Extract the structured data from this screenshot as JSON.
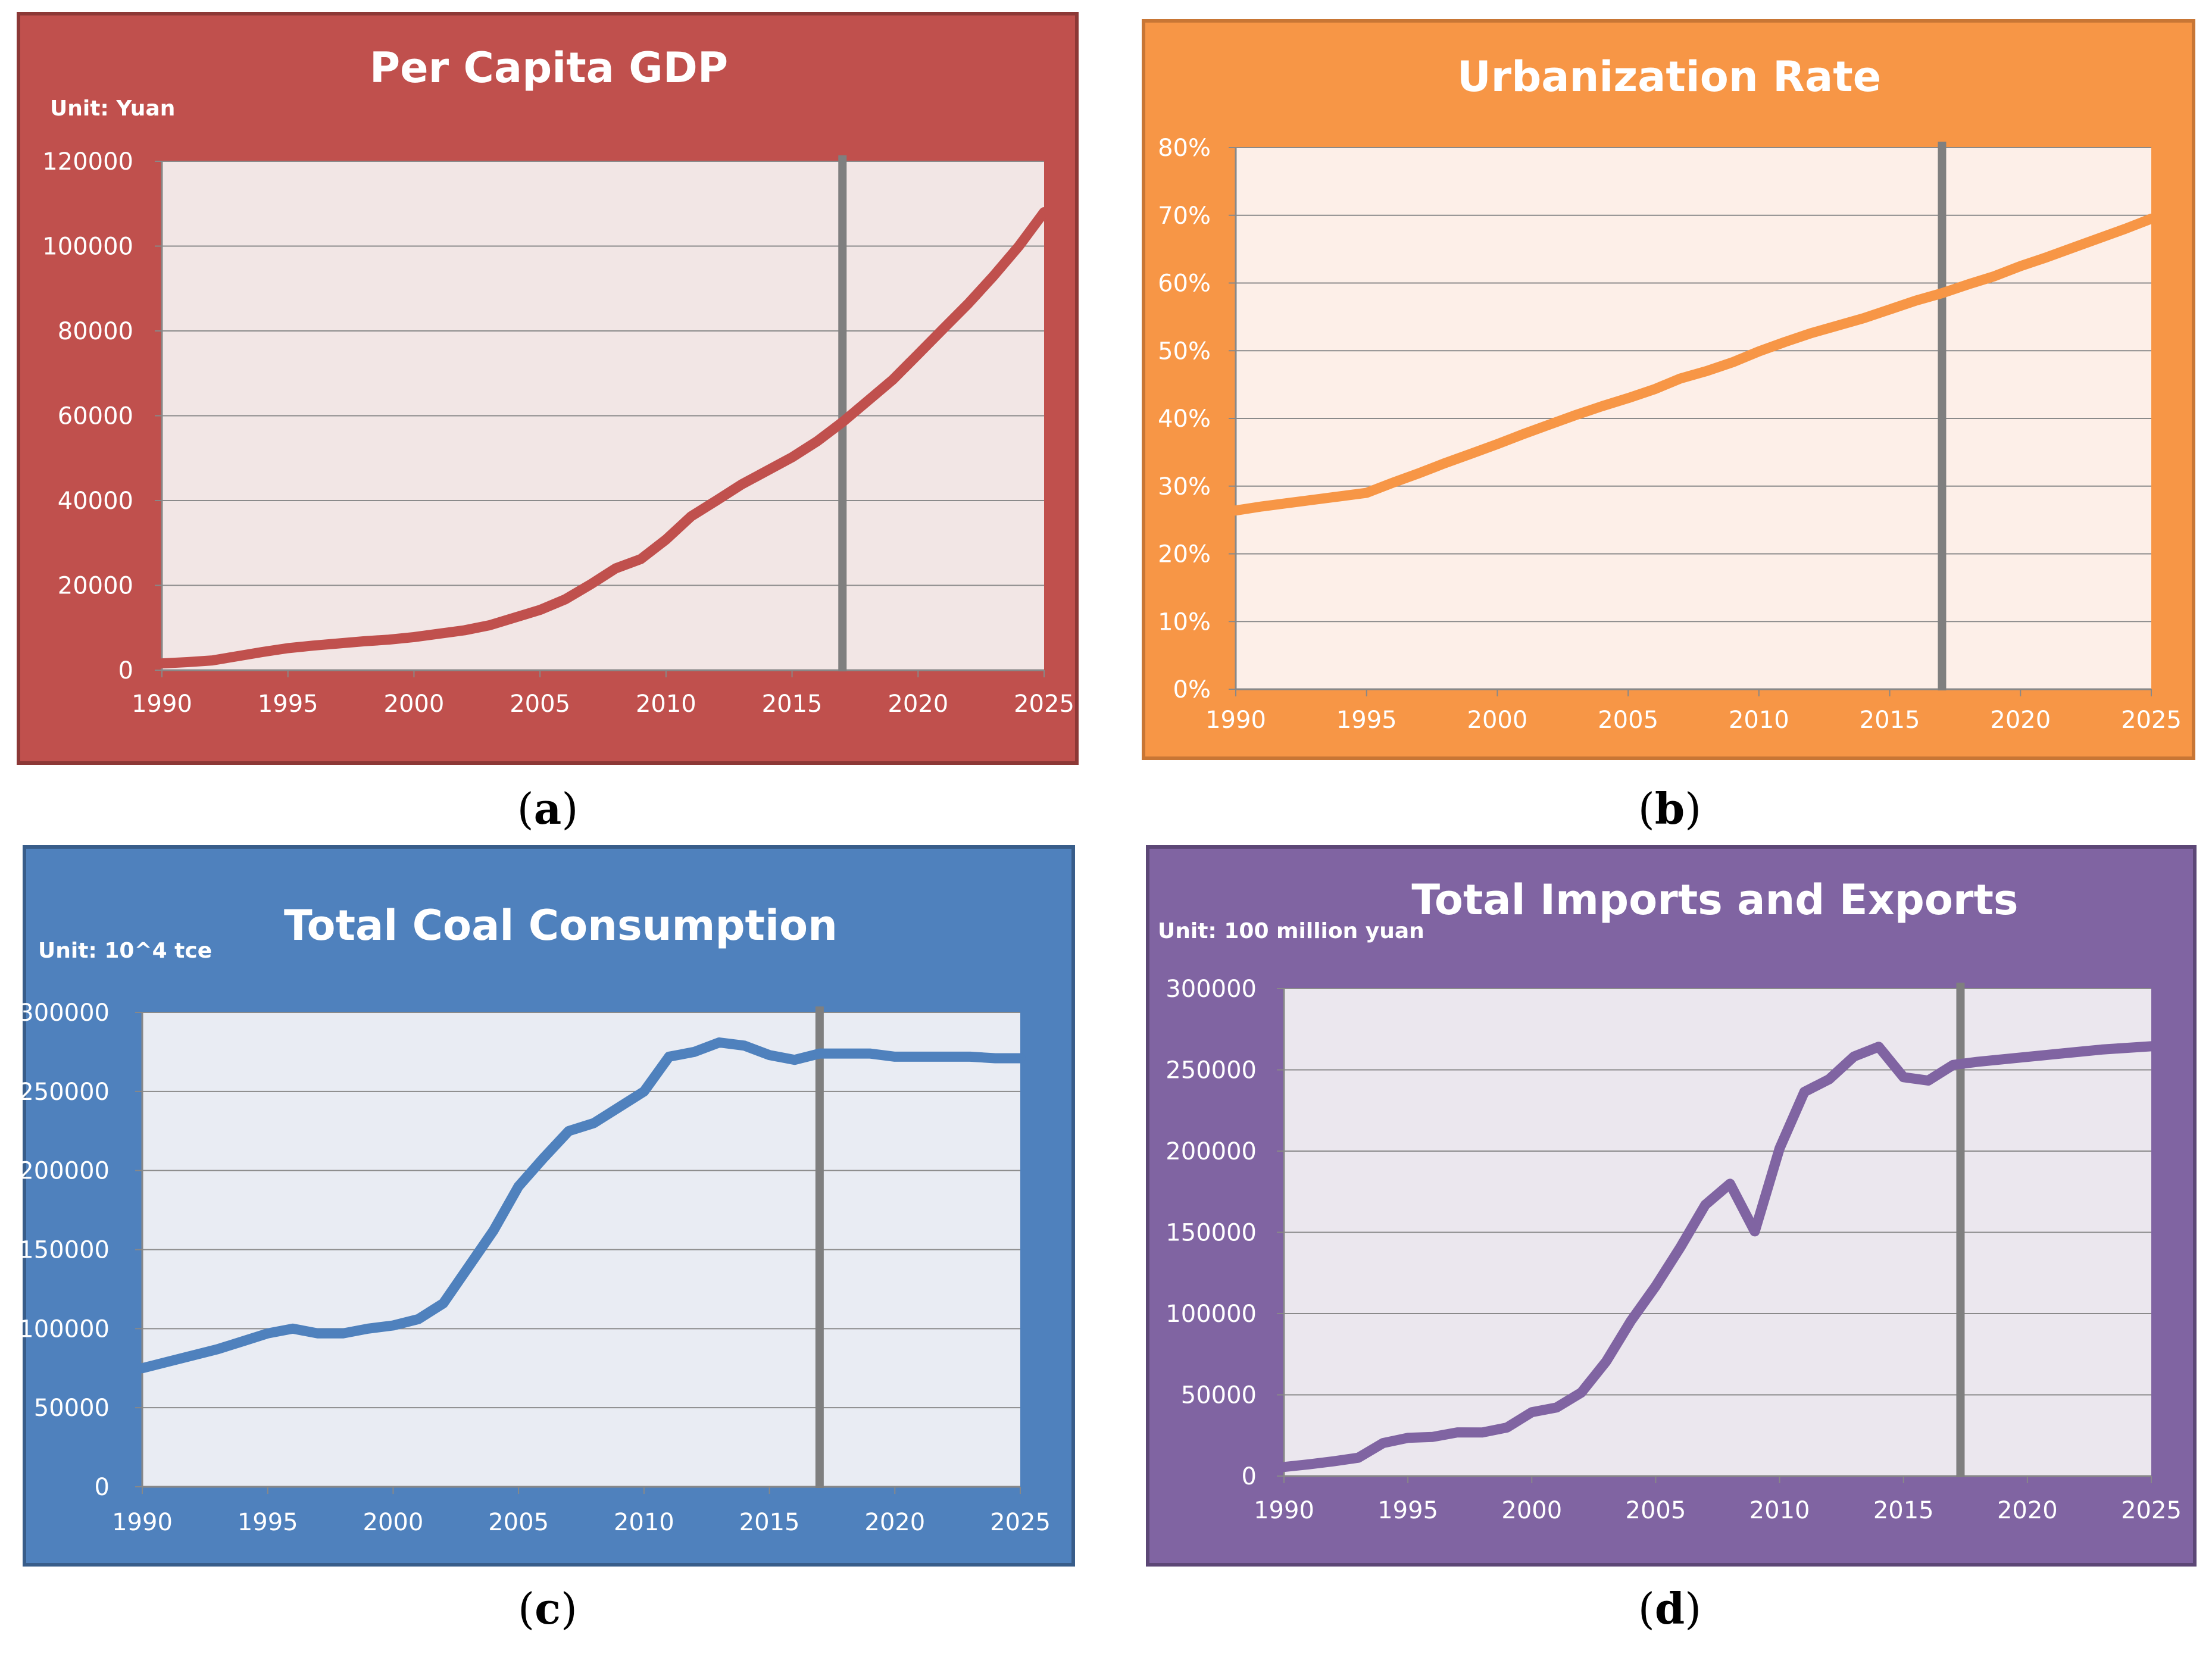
{
  "panels": [
    {
      "id": "a",
      "caption_letter": "a",
      "frame_color": "#c0504d",
      "border_color": "#8c3836",
      "plot_bg": "#f2e6e5",
      "line_color": "#c0504d",
      "chart_data": {
        "type": "line",
        "title": "Per Capita GDP",
        "unit_label": "Unit: Yuan",
        "xlabel": "",
        "ylabel": "",
        "x": [
          1990,
          1991,
          1992,
          1993,
          1994,
          1995,
          1996,
          1997,
          1998,
          1999,
          2000,
          2001,
          2002,
          2003,
          2004,
          2005,
          2006,
          2007,
          2008,
          2009,
          2010,
          2011,
          2012,
          2013,
          2014,
          2015,
          2016,
          2017,
          2018,
          2019,
          2020,
          2021,
          2022,
          2023,
          2024,
          2025
        ],
        "series": [
          {
            "name": "Per Capita GDP",
            "values": [
              1600,
              1900,
              2300,
              3300,
              4300,
              5200,
              5800,
              6300,
              6800,
              7200,
              7800,
              8600,
              9400,
              10600,
              12400,
              14200,
              16700,
              20200,
              24000,
              26200,
              30800,
              36300,
              40000,
              43800,
              47000,
              50200,
              54000,
              58500,
              63500,
              68500,
              74500,
              80500,
              86500,
              93000,
              100000,
              108000
            ]
          }
        ],
        "ylim": [
          0,
          120000
        ],
        "yticks": [
          "0",
          "20000",
          "40000",
          "60000",
          "80000",
          "100000",
          "120000"
        ],
        "xlim": [
          1990,
          2025
        ],
        "xticks": [
          "1990",
          "1995",
          "2000",
          "2005",
          "2010",
          "2015",
          "2020",
          "2025"
        ],
        "divider_x": 2017,
        "grid": true
      }
    },
    {
      "id": "b",
      "caption_letter": "b",
      "frame_color": "#f79646",
      "border_color": "#c87635",
      "plot_bg": "#fdefe8",
      "line_color": "#f79646",
      "chart_data": {
        "type": "line",
        "title": "Urbanization Rate",
        "unit_label": "",
        "xlabel": "",
        "ylabel": "",
        "x": [
          1990,
          1991,
          1992,
          1993,
          1994,
          1995,
          1996,
          1997,
          1998,
          1999,
          2000,
          2001,
          2002,
          2003,
          2004,
          2005,
          2006,
          2007,
          2008,
          2009,
          2010,
          2011,
          2012,
          2013,
          2014,
          2015,
          2016,
          2017,
          2018,
          2019,
          2020,
          2021,
          2022,
          2023,
          2024,
          2025
        ],
        "series": [
          {
            "name": "Urbanization Rate",
            "values": [
              26.4,
              27.0,
              27.5,
              28.0,
              28.5,
              29.0,
              30.5,
              31.9,
              33.4,
              34.8,
              36.2,
              37.7,
              39.1,
              40.5,
              41.8,
              43.0,
              44.3,
              45.9,
              47.0,
              48.3,
              49.9,
              51.3,
              52.6,
              53.7,
              54.8,
              56.1,
              57.4,
              58.5,
              59.8,
              61.0,
              62.5,
              63.8,
              65.2,
              66.6,
              68.0,
              69.5
            ]
          }
        ],
        "ylim": [
          0,
          80
        ],
        "yticks": [
          "0%",
          "10%",
          "20%",
          "30%",
          "40%",
          "50%",
          "60%",
          "70%",
          "80%"
        ],
        "xlim": [
          1990,
          2025
        ],
        "xticks": [
          "1990",
          "1995",
          "2000",
          "2005",
          "2010",
          "2015",
          "2020",
          "2025"
        ],
        "divider_x": 2017,
        "grid": true
      }
    },
    {
      "id": "c",
      "caption_letter": "c",
      "frame_color": "#4f81bd",
      "border_color": "#385d8a",
      "plot_bg": "#e9ecf3",
      "line_color": "#4f81bd",
      "chart_data": {
        "type": "line",
        "title": "Total Coal Consumption",
        "unit_label": "Unit: 10^4 tce",
        "xlabel": "",
        "ylabel": "",
        "x": [
          1990,
          1991,
          1992,
          1993,
          1994,
          1995,
          1996,
          1997,
          1998,
          1999,
          2000,
          2001,
          2002,
          2003,
          2004,
          2005,
          2006,
          2007,
          2008,
          2009,
          2010,
          2011,
          2012,
          2013,
          2014,
          2015,
          2016,
          2017,
          2018,
          2019,
          2020,
          2021,
          2022,
          2023,
          2024,
          2025
        ],
        "series": [
          {
            "name": "Total Coal Consumption",
            "values": [
              75000,
              79000,
              83000,
              87000,
              92000,
              97000,
              100000,
              97000,
              97000,
              100000,
              102000,
              106000,
              116000,
              139000,
              162000,
              190000,
              208000,
              225000,
              230000,
              240000,
              250000,
              272000,
              275000,
              281000,
              279000,
              273000,
              270000,
              274000,
              274000,
              274000,
              272000,
              272000,
              272000,
              272000,
              271000,
              271000
            ]
          }
        ],
        "ylim": [
          0,
          300000
        ],
        "yticks": [
          "0",
          "50000",
          "100000",
          "150000",
          "200000",
          "250000",
          "300000"
        ],
        "xlim": [
          1990,
          2025
        ],
        "xticks": [
          "1990",
          "1995",
          "2000",
          "2005",
          "2010",
          "2015",
          "2020",
          "2025"
        ],
        "divider_x": 2017,
        "grid": true
      }
    },
    {
      "id": "d",
      "caption_letter": "d",
      "frame_color": "#8064a2",
      "border_color": "#5c4776",
      "plot_bg": "#ebe7ee",
      "line_color": "#8064a2",
      "chart_data": {
        "type": "line",
        "title": "Total Imports and Exports",
        "unit_label": "Unit: 100 million yuan",
        "xlabel": "",
        "ylabel": "",
        "x": [
          1990,
          1991,
          1992,
          1993,
          1994,
          1995,
          1996,
          1997,
          1998,
          1999,
          2000,
          2001,
          2002,
          2003,
          2004,
          2005,
          2006,
          2007,
          2008,
          2009,
          2010,
          2011,
          2012,
          2013,
          2014,
          2015,
          2016,
          2017,
          2018,
          2019,
          2020,
          2021,
          2022,
          2023,
          2024,
          2025
        ],
        "series": [
          {
            "name": "Total Imports and Exports",
            "values": [
              5600,
              7200,
              9100,
              11300,
              20300,
              23500,
              24100,
              26900,
              26800,
              29900,
              39300,
              42200,
              51400,
              70500,
              95500,
              116900,
              140900,
              166900,
              179900,
              150600,
              201700,
              236400,
              244200,
              258200,
              264200,
              245500,
              243400,
              253000,
              255000,
              256500,
              258000,
              259500,
              261000,
              262500,
              263500,
              264500
            ]
          }
        ],
        "ylim": [
          0,
          300000
        ],
        "yticks": [
          "0",
          "50000",
          "100000",
          "150000",
          "200000",
          "250000",
          "300000"
        ],
        "xlim": [
          1990,
          2025
        ],
        "xticks": [
          "1990",
          "1995",
          "2000",
          "2005",
          "2010",
          "2015",
          "2020",
          "2025"
        ],
        "divider_x": 2017.3,
        "grid": true
      }
    }
  ]
}
